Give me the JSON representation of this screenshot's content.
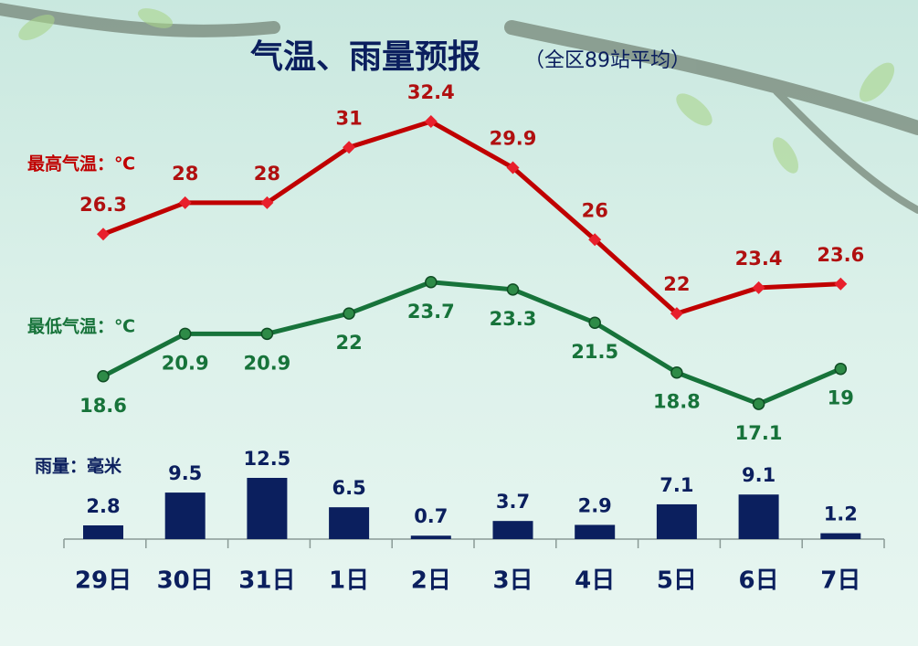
{
  "chart_data": {
    "type": "line",
    "title": "气温、雨量预报",
    "subtitle": "（全区89站平均）",
    "categories": [
      "29日",
      "30日",
      "31日",
      "1日",
      "2日",
      "3日",
      "4日",
      "5日",
      "6日",
      "7日"
    ],
    "series": [
      {
        "name": "最高气温：℃",
        "color": "#c00000",
        "marker": "diamond",
        "values": [
          26.3,
          28,
          28,
          31,
          32.4,
          29.9,
          26,
          22,
          23.4,
          23.6
        ]
      },
      {
        "name": "最低气温：℃",
        "color": "#17733a",
        "marker": "circle",
        "values": [
          18.6,
          20.9,
          20.9,
          22,
          23.7,
          23.3,
          21.5,
          18.8,
          17.1,
          19
        ]
      },
      {
        "name": "雨量：毫米",
        "type": "bar",
        "color": "#0b1f5e",
        "values": [
          2.8,
          9.5,
          12.5,
          6.5,
          0.7,
          3.7,
          2.9,
          7.1,
          9.1,
          1.2
        ]
      }
    ]
  }
}
